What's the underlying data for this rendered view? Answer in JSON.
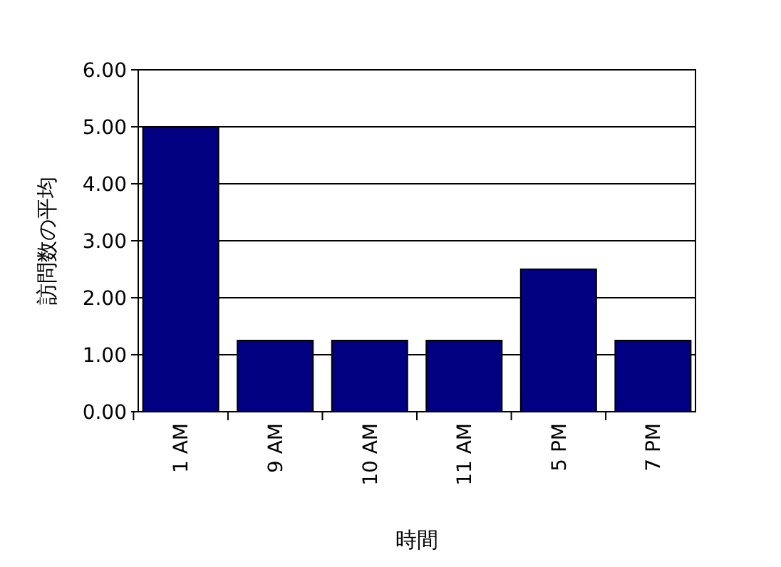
{
  "chart_data": {
    "type": "bar",
    "xlabel": "時間",
    "ylabel": "訪問数の平均",
    "categories": [
      "1 AM",
      "9 AM",
      "10 AM",
      "11 AM",
      "5 PM",
      "7 PM"
    ],
    "values": [
      5.0,
      1.25,
      1.25,
      1.25,
      2.5,
      1.25
    ],
    "color": "#000080",
    "ylim": [
      0,
      6
    ],
    "yticks": [
      {
        "value": 0,
        "label": "0.00"
      },
      {
        "value": 1,
        "label": "1.00"
      },
      {
        "value": 2,
        "label": "2.00"
      },
      {
        "value": 3,
        "label": "3.00"
      },
      {
        "value": 4,
        "label": "4.00"
      },
      {
        "value": 5,
        "label": "5.00"
      },
      {
        "value": 6,
        "label": "6.00"
      }
    ],
    "grid": "y"
  }
}
